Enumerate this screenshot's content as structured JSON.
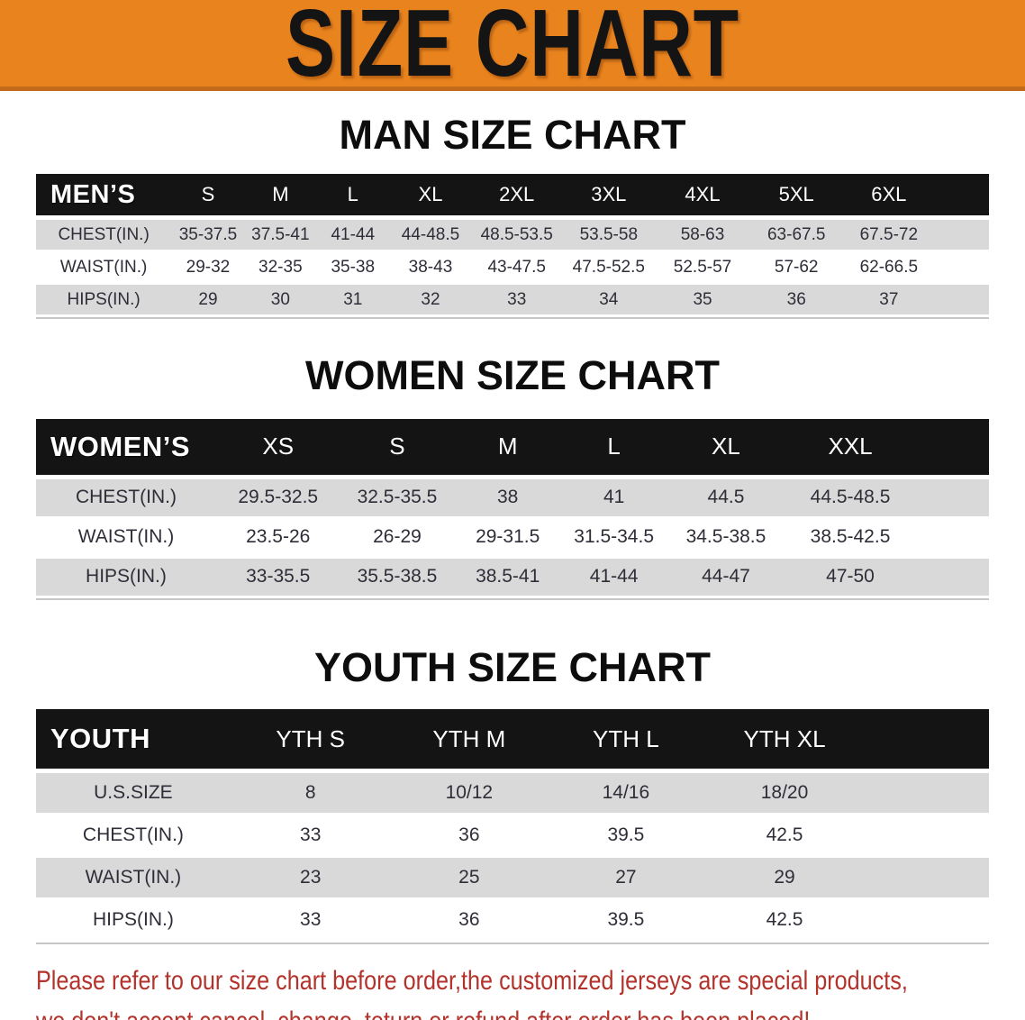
{
  "banner": {
    "title": "SIZE CHART"
  },
  "colors": {
    "banner_orange": "#E8831E",
    "banner_edge": "#C2691A",
    "header_black": "#141414",
    "row_gray": "#D9D9D9",
    "note_red": "#B3322B"
  },
  "sections": {
    "men": {
      "heading": "MAN SIZE CHART",
      "group_label": "MEN’S",
      "sizes": [
        "S",
        "M",
        "L",
        "XL",
        "2XL",
        "3XL",
        "4XL",
        "5XL",
        "6XL"
      ],
      "rows": [
        {
          "label": "CHEST(IN.)",
          "values": [
            "35-37.5",
            "37.5-41",
            "41-44",
            "44-48.5",
            "48.5-53.5",
            "53.5-58",
            "58-63",
            "63-67.5",
            "67.5-72"
          ]
        },
        {
          "label": "WAIST(IN.)",
          "values": [
            "29-32",
            "32-35",
            "35-38",
            "38-43",
            "43-47.5",
            "47.5-52.5",
            "52.5-57",
            "57-62",
            "62-66.5"
          ]
        },
        {
          "label": "HIPS(IN.)",
          "values": [
            "29",
            "30",
            "31",
            "32",
            "33",
            "34",
            "35",
            "36",
            "37"
          ]
        }
      ]
    },
    "women": {
      "heading": "WOMEN SIZE CHART",
      "group_label": "WOMEN’S",
      "sizes": [
        "XS",
        "S",
        "M",
        "L",
        "XL",
        "XXL"
      ],
      "rows": [
        {
          "label": "CHEST(IN.)",
          "values": [
            "29.5-32.5",
            "32.5-35.5",
            "38",
            "41",
            "44.5",
            "44.5-48.5"
          ]
        },
        {
          "label": "WAIST(IN.)",
          "values": [
            "23.5-26",
            "26-29",
            "29-31.5",
            "31.5-34.5",
            "34.5-38.5",
            "38.5-42.5"
          ]
        },
        {
          "label": "HIPS(IN.)",
          "values": [
            "33-35.5",
            "35.5-38.5",
            "38.5-41",
            "41-44",
            "44-47",
            "47-50"
          ]
        }
      ]
    },
    "youth": {
      "heading": "YOUTH SIZE CHART",
      "group_label": "YOUTH",
      "sizes": [
        "YTH S",
        "YTH M",
        "YTH L",
        "YTH XL"
      ],
      "rows": [
        {
          "label": "U.S.SIZE",
          "values": [
            "8",
            "10/12",
            "14/16",
            "18/20"
          ]
        },
        {
          "label": "CHEST(IN.)",
          "values": [
            "33",
            "36",
            "39.5",
            "42.5"
          ]
        },
        {
          "label": "WAIST(IN.)",
          "values": [
            "23",
            "25",
            "27",
            "29"
          ]
        },
        {
          "label": "HIPS(IN.)",
          "values": [
            "33",
            "36",
            "39.5",
            "42.5"
          ]
        }
      ]
    }
  },
  "note": {
    "line1": "Please refer to our size chart before order,the customized jerseys are special products,",
    "line2": "we don't accept cancel, change, teturn or refund after order has been placed!"
  }
}
